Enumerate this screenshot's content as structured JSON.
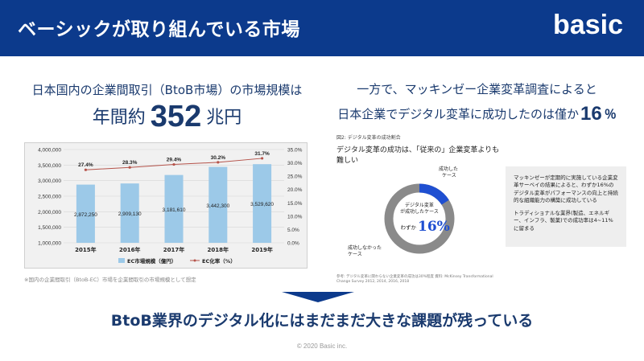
{
  "header": {
    "title": "ベーシックが取り組んでいる市場",
    "logo": "basic"
  },
  "left": {
    "subtitle": "日本国内の企業間取引（BtoB市場）の市場規模は",
    "big_prefix": "年間約",
    "big_number": "352",
    "big_suffix": "兆円"
  },
  "right": {
    "line1": "一方で、マッキンゼー企業変革調査によると",
    "line2_text": "日本企業でデジタル変革に成功したのは僅か",
    "line2_number": "16",
    "line2_unit": "％"
  },
  "chart_data": {
    "type": "bar",
    "categories": [
      "2015年",
      "2016年",
      "2017年",
      "2018年",
      "2019年"
    ],
    "series": [
      {
        "name": "EC市場規模（億円）",
        "type": "bar",
        "axis": "left",
        "color": "#9cc9e8",
        "values": [
          2872250,
          2909130,
          3181610,
          3442300,
          3529620
        ],
        "labels": [
          "2,872,250",
          "2,909,130",
          "3,181,610",
          "3,442,300",
          "3,529,620"
        ]
      },
      {
        "name": "EC化率（%）",
        "type": "line",
        "axis": "right",
        "color": "#b5534a",
        "values": [
          27.4,
          28.3,
          29.4,
          30.2,
          31.7
        ],
        "labels": [
          "27.4%",
          "28.3%",
          "29.4%",
          "30.2%",
          "31.7%"
        ]
      }
    ],
    "y_left_ticks": [
      "1,000,000",
      "1,500,000",
      "2,000,000",
      "2,500,000",
      "3,000,000",
      "3,500,000",
      "4,000,000"
    ],
    "y_left_range": [
      1000000,
      4000000
    ],
    "y_right_ticks": [
      "0.0%",
      "5.0%",
      "10.0%",
      "15.0%",
      "20.0%",
      "25.0%",
      "30.0%",
      "35.0%"
    ],
    "y_right_range": [
      0,
      35
    ],
    "grid": true,
    "legend": "bottom"
  },
  "chart_note": "※国内の企業間取引（BtoB-EC）市場を企業間取引の市場規模として想定",
  "figure": {
    "caption": "図2: デジタル変革の成功割合",
    "title": "デジタル変革の成功は、「従来の」企業変革よりも難しい",
    "donut": {
      "type": "pie",
      "success_percent": 16,
      "center_label": "デジタル変革が成功したケース",
      "center_prefix": "わずか",
      "center_value": "16%",
      "success_label": "成功した ケース",
      "fail_label": "成功しなかった ケース",
      "success_color": "#1f4fd1",
      "fail_color": "#8a8a8a"
    },
    "source": "参考: デジタル変革に関わらない企業変革の成功は30%程度 資料: McKinsey Transformational Change Survey 2012, 2014, 2016, 2018"
  },
  "note": {
    "p1": "マッキンゼーが定期的に実施している企業変革サーベイの結果によると、わずか16%のデジタル変革がパフォーマンスの向上と持続的な組織能力の構築に成功している",
    "p2": "トラディショナルな業界(製造、エネルギー、インフラ、製薬)での成功率は4~11%に留まる"
  },
  "conclusion": "BtoB業界のデジタル化にはまだまだ大きな課題が残っている",
  "footer": "© 2020 Basic inc."
}
